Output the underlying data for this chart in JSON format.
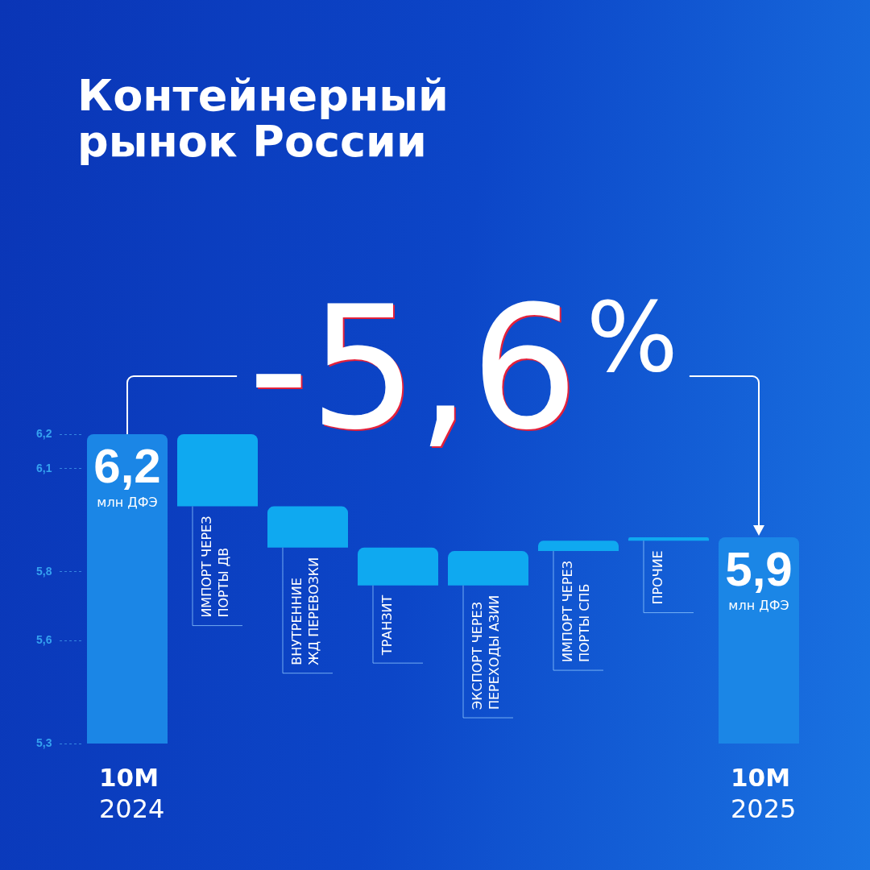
{
  "chart_data": {
    "type": "bar",
    "title": "Контейнерный рынок России",
    "categories": [
      "10М 2024",
      "ИМПОРТ ЧЕРЕЗ ПОРТЫ ДВ",
      "ВНУТРЕННИЕ ЖД ПЕРЕВОЗКИ",
      "ТРАНЗИТ",
      "ЭКСПОРТ ЧЕРЕЗ ПЕРЕХОДЫ АЗИИ",
      "ИМПОРТ ЧЕРЕЗ ПОРТЫ СПБ",
      "ПРОЧИЕ",
      "10М 2025"
    ],
    "values": [
      6.2,
      -0.21,
      -0.12,
      -0.11,
      0.1,
      0.03,
      0.01,
      5.9
    ],
    "base": [
      null,
      6.2,
      5.99,
      5.87,
      5.76,
      5.86,
      5.89,
      null
    ],
    "colors": [
      "#1b86e6",
      "#0fa9f0",
      "#0fa9f0",
      "#0fa9f0",
      "#0fa9f0",
      "#0fa9f0",
      "#0fa9f0",
      "#1b86e6"
    ],
    "value_labels": [
      "6,2 млн ДФЭ",
      null,
      null,
      null,
      null,
      null,
      null,
      "5,9 млн ДФЭ"
    ],
    "ylim": [
      5.3,
      6.2
    ],
    "yticks": [
      {
        "value": 5.3,
        "label": "5,3"
      },
      {
        "value": 5.6,
        "label": "5,6"
      },
      {
        "value": 5.8,
        "label": "5,8"
      },
      {
        "value": 6.1,
        "label": "6,1"
      },
      {
        "value": 6.2,
        "label": "6,2"
      }
    ],
    "annotations": [
      "-5,6%"
    ]
  }
}
